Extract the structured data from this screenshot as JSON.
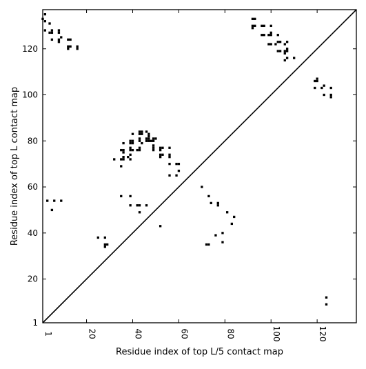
{
  "chart_data": {
    "type": "scatter",
    "title": "",
    "xlabel": "Residue index of top L/5 contact map",
    "ylabel": "Residue index of top L contact map",
    "xlim": [
      1,
      137
    ],
    "ylim": [
      1,
      137
    ],
    "x_ticks": [
      1,
      20,
      40,
      60,
      80,
      100,
      120
    ],
    "x_tick_labels": [
      "1",
      "20",
      "40",
      "60",
      "80",
      "100",
      "120"
    ],
    "y_ticks": [
      1,
      20,
      40,
      60,
      80,
      100,
      120
    ],
    "y_tick_labels": [
      "1",
      "20",
      "40",
      "60",
      "80",
      "100",
      "120"
    ],
    "x_tick_label_rotation": "vertical",
    "grid": false,
    "legend": "none",
    "diagonal": true,
    "marker": "square",
    "marker_color": "#000000",
    "points_upper_left": [
      [
        1,
        133
      ],
      [
        2,
        132
      ],
      [
        2,
        135
      ],
      [
        2,
        128
      ],
      [
        4,
        131
      ],
      [
        4,
        127
      ],
      [
        5,
        127
      ],
      [
        5,
        128
      ],
      [
        5,
        124
      ],
      [
        8,
        128
      ],
      [
        8,
        127
      ],
      [
        8,
        124
      ],
      [
        8,
        123
      ],
      [
        9,
        125
      ],
      [
        12,
        124
      ],
      [
        12,
        121
      ],
      [
        12,
        120
      ],
      [
        13,
        124
      ],
      [
        13,
        121
      ],
      [
        16,
        121
      ],
      [
        16,
        120
      ],
      [
        3,
        54
      ],
      [
        5,
        50
      ],
      [
        6,
        54
      ],
      [
        9,
        54
      ],
      [
        25,
        38
      ],
      [
        28,
        38
      ],
      [
        28,
        35
      ],
      [
        28,
        34
      ],
      [
        29,
        35
      ],
      [
        32,
        72
      ],
      [
        35,
        69
      ],
      [
        35,
        72
      ],
      [
        35,
        76
      ],
      [
        36,
        72
      ],
      [
        36,
        73
      ],
      [
        36,
        75
      ],
      [
        36,
        76
      ],
      [
        36,
        79
      ],
      [
        38,
        73
      ],
      [
        39,
        72
      ],
      [
        39,
        74
      ],
      [
        39,
        76
      ],
      [
        39,
        77
      ],
      [
        39,
        79
      ],
      [
        39,
        80
      ],
      [
        40,
        76
      ],
      [
        40,
        79
      ],
      [
        40,
        80
      ],
      [
        40,
        83
      ],
      [
        42,
        76
      ],
      [
        43,
        76
      ],
      [
        43,
        77
      ],
      [
        43,
        80
      ],
      [
        43,
        81
      ],
      [
        43,
        83
      ],
      [
        43,
        84
      ],
      [
        44,
        79
      ],
      [
        44,
        83
      ],
      [
        44,
        84
      ],
      [
        46,
        80
      ],
      [
        46,
        81
      ],
      [
        46,
        84
      ],
      [
        47,
        80
      ],
      [
        47,
        81
      ],
      [
        47,
        82
      ],
      [
        47,
        83
      ],
      [
        48,
        80
      ],
      [
        49,
        80
      ],
      [
        49,
        76
      ],
      [
        49,
        77
      ],
      [
        49,
        78
      ],
      [
        49,
        81
      ],
      [
        50,
        81
      ],
      [
        52,
        73
      ],
      [
        52,
        74
      ],
      [
        52,
        76
      ],
      [
        52,
        77
      ],
      [
        53,
        74
      ],
      [
        53,
        77
      ],
      [
        56,
        73
      ],
      [
        56,
        74
      ],
      [
        56,
        77
      ],
      [
        56,
        70
      ],
      [
        56,
        65
      ],
      [
        59,
        65
      ],
      [
        59,
        70
      ],
      [
        60,
        70
      ],
      [
        60,
        67
      ],
      [
        35,
        56
      ],
      [
        39,
        56
      ],
      [
        39,
        52
      ],
      [
        42,
        52
      ],
      [
        43,
        52
      ],
      [
        43,
        49
      ],
      [
        46,
        52
      ],
      [
        52,
        43
      ],
      [
        70,
        60
      ],
      [
        72,
        35
      ],
      [
        73,
        35
      ],
      [
        73,
        56
      ],
      [
        74,
        53
      ],
      [
        76,
        39
      ],
      [
        77,
        52
      ],
      [
        77,
        53
      ],
      [
        79,
        40
      ],
      [
        79,
        36
      ],
      [
        81,
        49
      ],
      [
        83,
        44
      ],
      [
        84,
        47
      ],
      [
        92,
        133
      ],
      [
        93,
        133
      ],
      [
        92,
        129
      ],
      [
        92,
        130
      ],
      [
        93,
        130
      ],
      [
        96,
        130
      ],
      [
        97,
        130
      ],
      [
        96,
        126
      ],
      [
        97,
        126
      ],
      [
        99,
        126
      ],
      [
        100,
        127
      ],
      [
        100,
        126
      ],
      [
        100,
        130
      ],
      [
        99,
        122
      ],
      [
        100,
        122
      ],
      [
        102,
        122
      ],
      [
        103,
        123
      ],
      [
        103,
        126
      ],
      [
        104,
        123
      ],
      [
        103,
        119
      ],
      [
        104,
        119
      ],
      [
        106,
        122
      ],
      [
        107,
        123
      ],
      [
        106,
        118
      ],
      [
        106,
        119
      ],
      [
        107,
        119
      ],
      [
        107,
        120
      ],
      [
        106,
        115
      ],
      [
        107,
        116
      ],
      [
        110,
        116
      ],
      [
        119,
        106
      ],
      [
        120,
        106
      ],
      [
        120,
        107
      ],
      [
        119,
        103
      ],
      [
        122,
        103
      ],
      [
        123,
        104
      ],
      [
        123,
        100
      ],
      [
        126,
        103
      ],
      [
        126,
        100
      ],
      [
        126,
        99
      ],
      [
        124,
        12
      ],
      [
        124,
        9
      ]
    ]
  }
}
